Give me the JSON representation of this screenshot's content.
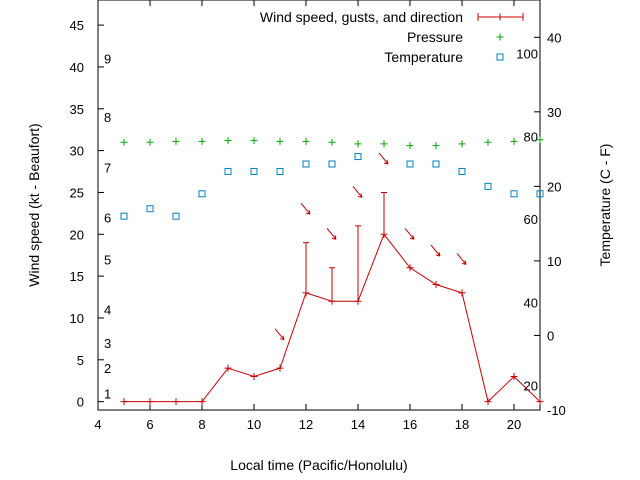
{
  "chart_data": {
    "type": "line",
    "xlabel": "Local time (Pacific/Honolulu)",
    "ylabel": "Wind speed (kt - Beaufort)",
    "y2label": "Temperature (C - F)",
    "xlim": [
      4,
      21
    ],
    "ylim": [
      -1,
      48
    ],
    "y2lim": [
      -10,
      45
    ],
    "x_ticks": [
      4,
      6,
      8,
      10,
      12,
      14,
      16,
      18,
      20
    ],
    "y_ticks": [
      0,
      5,
      10,
      15,
      20,
      25,
      30,
      35,
      40,
      45
    ],
    "y2_ticks": [
      -10,
      0,
      10,
      20,
      30,
      40
    ],
    "beaufort_labels": [
      {
        "label": "1",
        "kt": 1
      },
      {
        "label": "2",
        "kt": 4
      },
      {
        "label": "3",
        "kt": 7
      },
      {
        "label": "4",
        "kt": 11
      },
      {
        "label": "5",
        "kt": 17
      },
      {
        "label": "6",
        "kt": 22
      },
      {
        "label": "7",
        "kt": 28
      },
      {
        "label": "8",
        "kt": 34
      },
      {
        "label": "9",
        "kt": 41
      }
    ],
    "fahrenheit_labels": [
      {
        "label": "20",
        "celsius": -6.7
      },
      {
        "label": "40",
        "celsius": 4.4
      },
      {
        "label": "60",
        "celsius": 15.6
      },
      {
        "label": "80",
        "celsius": 26.7
      },
      {
        "label": "100",
        "celsius": 37.8
      }
    ],
    "legend": {
      "position": "top-right",
      "wind": "Wind speed, gusts, and direction",
      "pressure": "Pressure",
      "temperature": "Temperature"
    },
    "series": [
      {
        "name": "Wind speed, gusts, and direction",
        "color": "#cc0000",
        "x": [
          5,
          6,
          7,
          8,
          9,
          10,
          11,
          12,
          13,
          14,
          15,
          16,
          17,
          18,
          19,
          20,
          21
        ],
        "values": [
          0,
          0,
          0,
          0,
          4,
          3,
          4,
          13,
          12,
          12,
          20,
          16,
          14,
          13,
          0,
          3,
          0
        ],
        "gusts": [
          null,
          null,
          null,
          null,
          null,
          null,
          null,
          19,
          16,
          21,
          25,
          null,
          null,
          null,
          null,
          null,
          null
        ],
        "direction_arrows": [
          {
            "x": 11,
            "kt": 8
          },
          {
            "x": 12,
            "kt": 23
          },
          {
            "x": 13,
            "kt": 20
          },
          {
            "x": 14,
            "kt": 25
          },
          {
            "x": 15,
            "kt": 29
          },
          {
            "x": 16,
            "kt": 20
          },
          {
            "x": 17,
            "kt": 18
          },
          {
            "x": 18,
            "kt": 17
          }
        ]
      },
      {
        "name": "Pressure",
        "color": "#00aa00",
        "x": [
          5,
          6,
          7,
          8,
          9,
          10,
          11,
          12,
          13,
          14,
          15,
          16,
          17,
          18,
          19,
          20,
          21
        ],
        "values": [
          31,
          31,
          31.1,
          31.1,
          31.2,
          31.2,
          31.1,
          31.1,
          31,
          30.8,
          30.8,
          30.6,
          30.6,
          30.8,
          31,
          31.1,
          31.3
        ]
      },
      {
        "name": "Temperature",
        "color": "#0080c0",
        "x": [
          5,
          6,
          7,
          8,
          9,
          10,
          11,
          12,
          13,
          14,
          15,
          16,
          17,
          18,
          19,
          20,
          21
        ],
        "values": [
          16,
          17,
          16,
          19,
          22,
          22,
          22,
          23,
          23,
          24,
          null,
          23,
          23,
          22,
          20,
          19,
          19
        ]
      }
    ]
  }
}
